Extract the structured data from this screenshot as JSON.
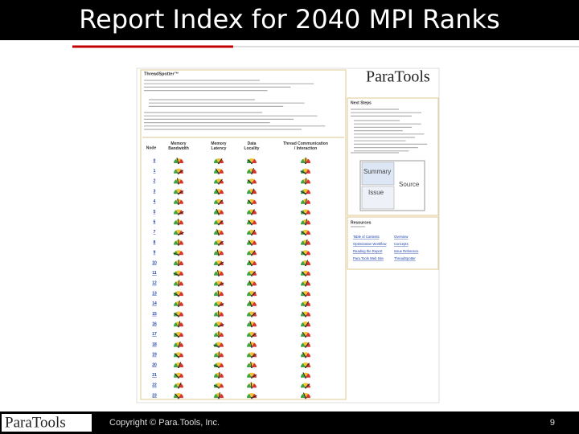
{
  "slide": {
    "title": "Report Index for 2040 MPI Ranks",
    "footer": {
      "logo": "ParaTools",
      "copyright": "Copyright © Para.Tools, Inc.",
      "page_number": "9"
    }
  },
  "report": {
    "heading": "ThreadSpotter™",
    "logo": "ParaTools",
    "table": {
      "headers": [
        "Node",
        "Memory Bandwidth",
        "Memory Latency",
        "Data Locality",
        "Thread Communication / Interaction"
      ],
      "nodes": [
        "0",
        "1",
        "2",
        "3",
        "4",
        "5",
        "6",
        "7",
        "8",
        "9",
        "10",
        "11",
        "12",
        "13",
        "14",
        "15",
        "16",
        "17",
        "18",
        "19",
        "20",
        "21",
        "22",
        "23"
      ]
    },
    "next_steps": {
      "title": "Next Steps"
    },
    "thumbnail": {
      "labels": [
        "Summary",
        "Issue",
        "Source"
      ]
    },
    "resources": {
      "title": "Resources",
      "links": [
        "Table of Contents",
        "Overview",
        "Optimization Workflow",
        "Concepts",
        "Reading the Report",
        "Issue Reference",
        "Para.Tools Web Site",
        "ThreadSpotter"
      ]
    }
  }
}
